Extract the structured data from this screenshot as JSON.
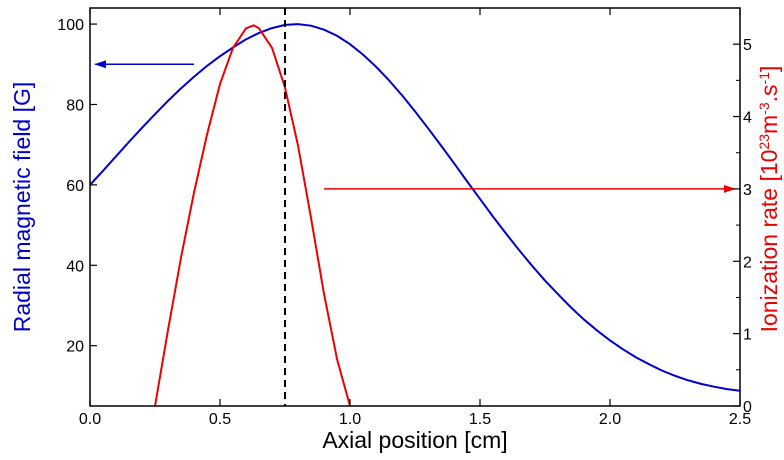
{
  "chart_data": {
    "type": "line",
    "xlabel": "Axial position [cm]",
    "ylabel_left": "Radial magnetic field [G]",
    "ylabel_right": {
      "prefix": "Ionization rate [10",
      "exp1": "23",
      "mid": "m",
      "exp2": "-3",
      "mid2": ".s",
      "exp3": "-1",
      "suffix": "]"
    },
    "xlim": [
      0,
      2.5
    ],
    "ylim_left": [
      5,
      104
    ],
    "ylim_right": [
      0,
      5.5
    ],
    "x_ticks": [
      "0.0",
      "0.5",
      "1.0",
      "1.5",
      "2.0",
      "2.5"
    ],
    "x_tick_values": [
      0,
      0.5,
      1.0,
      1.5,
      2.0,
      2.5
    ],
    "y_left_ticks": [
      "20",
      "40",
      "60",
      "80",
      "100"
    ],
    "y_left_tick_values": [
      20,
      40,
      60,
      80,
      100
    ],
    "y_right_ticks": [
      "0",
      "1",
      "2",
      "3",
      "4",
      "5"
    ],
    "y_right_tick_values": [
      0,
      1,
      2,
      3,
      4,
      5
    ],
    "colors": {
      "magnetic_field": "#0000cc",
      "ionization": "#ee0000",
      "vline": "#000000"
    },
    "series": [
      {
        "axis": "left",
        "x": [
          0,
          0.05,
          0.1,
          0.15,
          0.2,
          0.25,
          0.3,
          0.35,
          0.4,
          0.45,
          0.5,
          0.55,
          0.6,
          0.65,
          0.7,
          0.75,
          0.8,
          0.85,
          0.9,
          0.95,
          1.0,
          1.05,
          1.1,
          1.15,
          1.2,
          1.25,
          1.3,
          1.35,
          1.4,
          1.45,
          1.5,
          1.55,
          1.6,
          1.65,
          1.7,
          1.75,
          1.8,
          1.85,
          1.9,
          1.95,
          2.0,
          2.05,
          2.1,
          2.15,
          2.2,
          2.25,
          2.3,
          2.35,
          2.4,
          2.45,
          2.5
        ],
        "y": [
          60.0,
          63.5,
          67.1,
          70.7,
          74.2,
          77.6,
          80.9,
          84.0,
          86.9,
          89.6,
          92.0,
          94.2,
          96.2,
          97.8,
          99.0,
          99.8,
          100.0,
          99.6,
          98.6,
          97.1,
          95.0,
          92.4,
          89.4,
          86.0,
          82.3,
          78.3,
          74.1,
          69.8,
          65.4,
          60.9,
          56.5,
          52.1,
          47.9,
          43.8,
          39.9,
          36.2,
          32.8,
          29.5,
          26.5,
          23.8,
          21.3,
          19.1,
          17.1,
          15.4,
          13.8,
          12.5,
          11.4,
          10.5,
          9.8,
          9.2,
          8.8
        ]
      },
      {
        "axis": "right",
        "x": [
          0.25,
          0.3,
          0.35,
          0.4,
          0.45,
          0.5,
          0.55,
          0.6,
          0.63,
          0.65,
          0.7,
          0.75,
          0.8,
          0.85,
          0.9,
          0.95,
          1.0
        ],
        "y": [
          0.0,
          1.05,
          2.05,
          2.95,
          3.75,
          4.45,
          4.95,
          5.22,
          5.26,
          5.22,
          4.95,
          4.4,
          3.6,
          2.6,
          1.55,
          0.65,
          0.0
        ]
      }
    ],
    "vline_x": 0.75,
    "annotations": [
      {
        "type": "arrow",
        "axis": "left",
        "from": [
          0.4,
          90
        ],
        "to": [
          0.02,
          90
        ],
        "color": "#0000cc"
      },
      {
        "type": "arrow",
        "axis": "right",
        "from": [
          0.9,
          3
        ],
        "to": [
          2.48,
          3
        ],
        "color": "#ee0000"
      }
    ]
  }
}
